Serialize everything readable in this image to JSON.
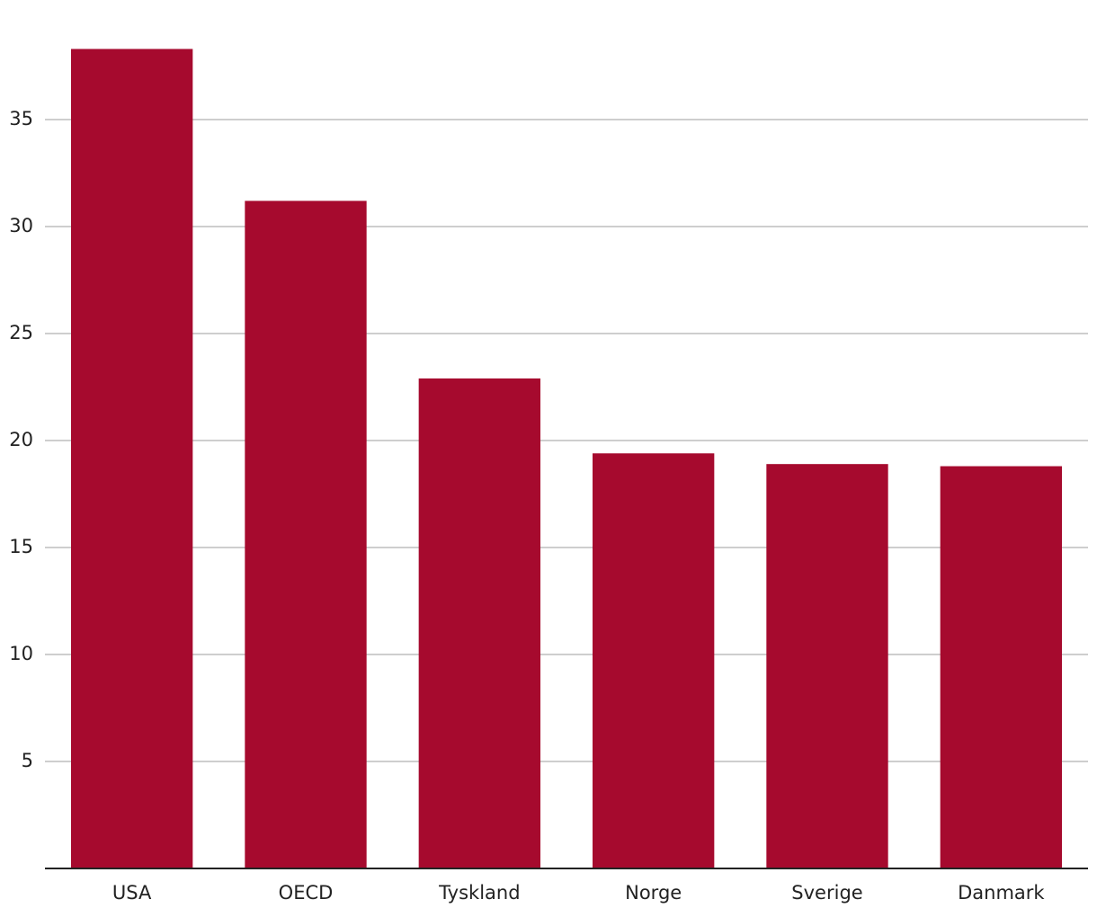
{
  "chart_data": {
    "type": "bar",
    "categories": [
      "USA",
      "OECD",
      "Tyskland",
      "Norge",
      "Sverige",
      "Danmark"
    ],
    "values": [
      38.3,
      31.2,
      22.9,
      19.4,
      18.9,
      18.8
    ],
    "color": "#a60a2e",
    "ylim": [
      0,
      40
    ],
    "yticks": [
      5,
      10,
      15,
      20,
      25,
      30,
      35
    ],
    "grid": true
  }
}
